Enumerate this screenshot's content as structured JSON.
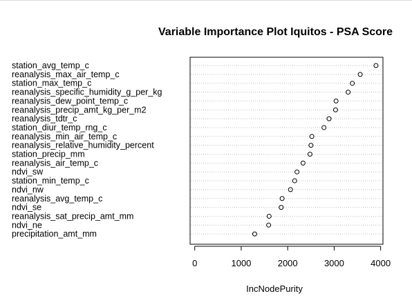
{
  "chart_data": {
    "type": "scatter",
    "title": "Variable Importance Plot Iquitos - PSA Score",
    "xlabel": "IncNodePurity",
    "ylabel": "",
    "xlim": [
      -100,
      4050
    ],
    "xticks": [
      0,
      1000,
      2000,
      3000,
      4000
    ],
    "grid": "horizontal-dotted",
    "categories": [
      "station_avg_temp_c",
      "reanalysis_max_air_temp_c",
      "station_max_temp_c",
      "reanalysis_specific_humidity_g_per_kg",
      "reanalysis_dew_point_temp_c",
      "reanalysis_precip_amt_kg_per_m2",
      "reanalysis_tdtr_c",
      "station_diur_temp_rng_c",
      "reanalysis_min_air_temp_c",
      "reanalysis_relative_humidity_percent",
      "station_precip_mm",
      "reanalysis_air_temp_c",
      "ndvi_sw",
      "station_min_temp_c",
      "ndvi_nw",
      "reanalysis_avg_temp_c",
      "ndvi_se",
      "reanalysis_sat_precip_amt_mm",
      "ndvi_ne",
      "precipitation_amt_mm"
    ],
    "values": [
      3900,
      3560,
      3390,
      3300,
      3040,
      3030,
      2890,
      2780,
      2520,
      2500,
      2480,
      2330,
      2200,
      2150,
      2060,
      1880,
      1860,
      1600,
      1590,
      1290
    ]
  }
}
